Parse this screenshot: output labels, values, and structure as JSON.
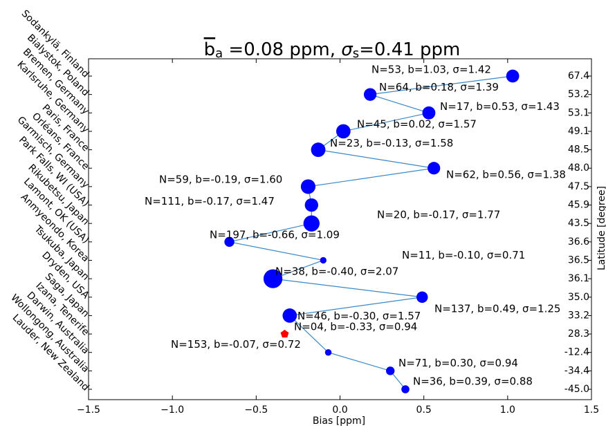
{
  "chart_data": {
    "type": "scatter",
    "title": [
      "b",
      "a",
      " =0.08 ppm, ",
      "σ",
      "s",
      "=0.41 ppm"
    ],
    "xlabel": "Bias [ppm]",
    "y2label": "Latitude [degree]",
    "xlim": [
      -1.5,
      1.5
    ],
    "xticks": [
      {
        "value": -1.5,
        "label": "−1.5"
      },
      {
        "value": -1.0,
        "label": "−1.0"
      },
      {
        "value": -0.5,
        "label": "−0.5"
      },
      {
        "value": 0,
        "label": "0.0"
      },
      0.5,
      {
        "value": 1.0,
        "label": "1.0"
      },
      1.5
    ],
    "line_color": "#3a87c8",
    "points": [
      {
        "station": "Sodankylä, Finland",
        "latitude": "67.4",
        "bias": 1.03,
        "sigma": 1.42,
        "label": "N=53, b=1.03, σ=1.42",
        "color": "#0000ff",
        "marker": "circle"
      },
      {
        "station": "Bialystok, Poland",
        "latitude": "53.2",
        "bias": 0.18,
        "sigma": 1.39,
        "label": "N=64, b=0.18, σ=1.39",
        "color": "#0000ff",
        "marker": "circle"
      },
      {
        "station": "Bremen, Germany",
        "latitude": "53.1",
        "bias": 0.53,
        "sigma": 1.43,
        "label": "N=17, b=0.53, σ=1.43",
        "color": "#0000ff",
        "marker": "circle"
      },
      {
        "station": "Karlsruhe, Germany",
        "latitude": "49.1",
        "bias": 0.02,
        "sigma": 1.57,
        "label": "N=45, b=0.02, σ=1.57",
        "color": "#0000ff",
        "marker": "circle"
      },
      {
        "station": "Paris, France",
        "latitude": "48.5",
        "bias": -0.13,
        "sigma": 1.58,
        "label": "N=23, b=-0.13, σ=1.58",
        "color": "#0000ff",
        "marker": "circle"
      },
      {
        "station": "Orléans, France",
        "latitude": "48.0",
        "bias": 0.56,
        "sigma": 1.38,
        "label": "N=62, b=0.56, σ=1.38",
        "color": "#0000ff",
        "marker": "circle"
      },
      {
        "station": "Garmisch, Germany",
        "latitude": "47.5",
        "bias": -0.19,
        "sigma": 1.6,
        "label": "N=59, b=-0.19, σ=1.60",
        "color": "#0000ff",
        "marker": "circle"
      },
      {
        "station": "Park Falls, WI (USA)",
        "latitude": "45.9",
        "bias": -0.17,
        "sigma": 1.47,
        "label": "N=111, b=-0.17, σ=1.47",
        "color": "#0000ff",
        "marker": "circle"
      },
      {
        "station": "Rikubetsu, Japan",
        "latitude": "43.5",
        "bias": -0.17,
        "sigma": 1.77,
        "label": "N=20, b=-0.17, σ=1.77",
        "color": "#0000ff",
        "marker": "circle"
      },
      {
        "station": "Lamont, OK (USA)",
        "latitude": "36.6",
        "bias": -0.66,
        "sigma": 1.09,
        "label": "N=197, b=-0.66, σ=1.09",
        "color": "#0000ff",
        "marker": "circle"
      },
      {
        "station": "Anmyeondo, Korea",
        "latitude": "36.5",
        "bias": -0.1,
        "sigma": 0.71,
        "label": "N=11, b=-0.10, σ=0.71",
        "color": "#0000ff",
        "marker": "circle"
      },
      {
        "station": "Tsukuba, Japan",
        "latitude": "36.1",
        "bias": -0.4,
        "sigma": 2.07,
        "label": "N=38, b=-0.40, σ=2.07",
        "color": "#0000ff",
        "marker": "circle"
      },
      {
        "station": "Dryden, USA",
        "latitude": "35.0",
        "bias": 0.49,
        "sigma": 1.25,
        "label": "N=137, b=0.49, σ=1.25",
        "color": "#0000ff",
        "marker": "circle"
      },
      {
        "station": "Saga, Japan",
        "latitude": "33.2",
        "bias": -0.3,
        "sigma": 1.57,
        "label": "N=46, b=-0.30, σ=1.57",
        "color": "#0000ff",
        "marker": "circle"
      },
      {
        "station": "Izana, Tenerife",
        "latitude": "28.3",
        "bias": -0.33,
        "sigma": 0.94,
        "label": "N=04, b=-0.33, σ=0.94",
        "color": "#ff0000",
        "marker": "pentagon"
      },
      {
        "station": "Darwin, Australia",
        "latitude": "-12.4",
        "bias": -0.07,
        "sigma": 0.72,
        "label": "N=153, b=-0.07, σ=0.72",
        "color": "#0000ff",
        "marker": "circle"
      },
      {
        "station": "Wollongong, Australia",
        "latitude": "-34.4",
        "bias": 0.3,
        "sigma": 0.94,
        "label": "N=71, b=0.30, σ=0.94",
        "color": "#0000ff",
        "marker": "circle"
      },
      {
        "station": "Lauder, New Zealand",
        "latitude": "-45.0",
        "bias": 0.39,
        "sigma": 0.88,
        "label": "N=36, b=0.39, σ=0.88",
        "color": "#0000ff",
        "marker": "circle"
      }
    ]
  }
}
